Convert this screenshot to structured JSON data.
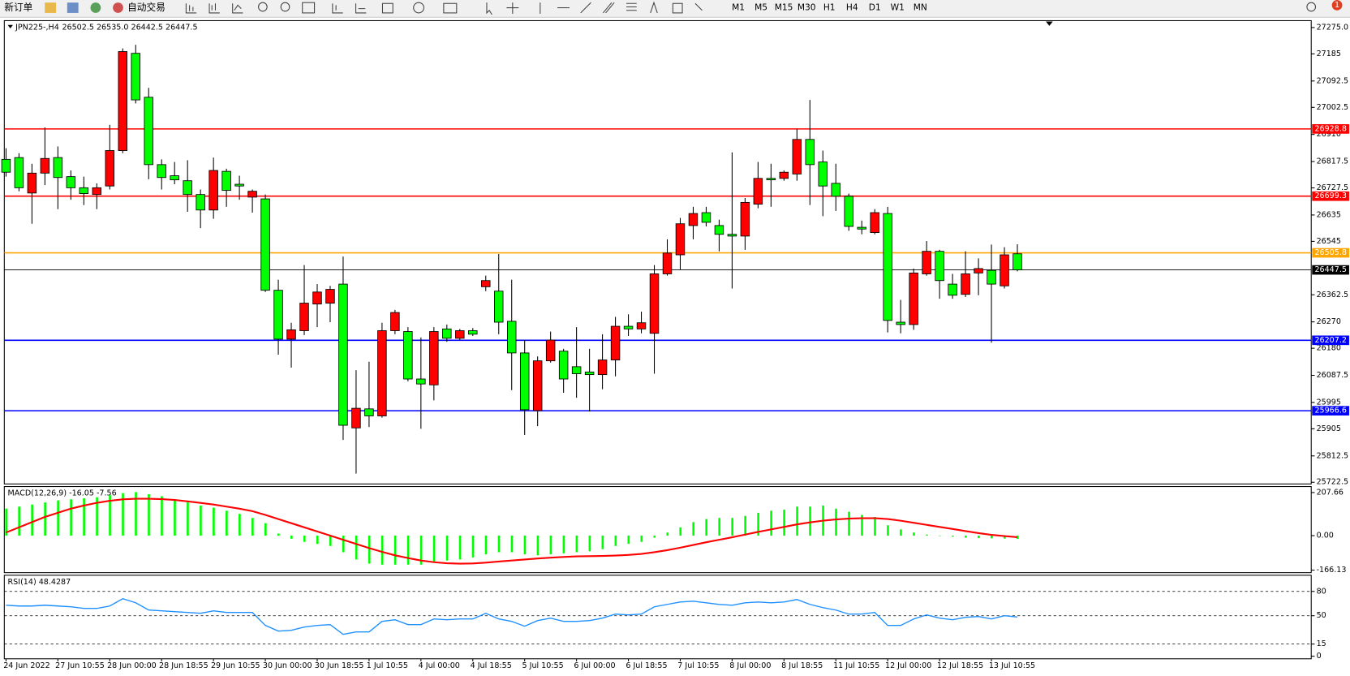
{
  "toolbar": {
    "buttons": [
      "新订单",
      "自动交易"
    ],
    "timeframes": [
      "M1",
      "M5",
      "M15",
      "M30",
      "H1",
      "H4",
      "D1",
      "W1",
      "MN"
    ],
    "badge": "1"
  },
  "chart_data": [
    {
      "type": "candlestick",
      "title": "JPN225-,H4",
      "ohlc_text": "26502.5 26535.0 26442.5 26447.5",
      "categories": [
        "24 Jun 2022",
        null,
        null,
        null,
        "27 Jun 10:55",
        null,
        null,
        null,
        "28 Jun 00:00",
        null,
        null,
        null,
        "28 Jun 18:55",
        null,
        null,
        null,
        "29 Jun 10:55",
        null,
        null,
        null,
        "30 Jun 00:00",
        null,
        null,
        null,
        "30 Jun 18:55",
        null,
        null,
        null,
        "1 Jul 10:55",
        null,
        null,
        null,
        "4 Jul 00:00",
        null,
        null,
        null,
        "4 Jul 18:55",
        null,
        null,
        null,
        "5 Jul 10:55",
        null,
        null,
        null,
        "6 Jul 00:00",
        null,
        null,
        null,
        "6 Jul 18:55",
        null,
        null,
        null,
        "7 Jul 10:55",
        null,
        null,
        null,
        "8 Jul 00:00",
        null,
        null,
        null,
        "8 Jul 18:55",
        null,
        null,
        null,
        "11 Jul 10:55",
        null,
        null,
        null,
        "12 Jul 00:00",
        null,
        null,
        null,
        "12 Jul 18:55",
        null,
        null,
        null,
        "13 Jul 10:55",
        null,
        null
      ],
      "open": [
        26825,
        26831,
        26710,
        26778,
        26831,
        26766,
        26728,
        26705,
        26734,
        26855,
        27187,
        27037,
        26807,
        26769,
        26752,
        26705,
        26652,
        26784,
        26740,
        26696,
        26690,
        26378,
        26211,
        26240,
        26331,
        26334,
        26399,
        25908,
        25973,
        25949,
        26240,
        26237,
        26075,
        26055,
        26246,
        26214,
        26240,
        26390,
        26375,
        26272,
        26164,
        25967,
        26137,
        26170,
        26117,
        26099,
        26090,
        26140,
        26255,
        26246,
        26231,
        26434,
        26499,
        26599,
        26643,
        26599,
        26569,
        26563,
        26672,
        26760,
        26760,
        26775,
        26893,
        26816,
        26743,
        26699,
        26593,
        26575,
        26640,
        26269,
        26261,
        26434,
        26511,
        26399,
        26364,
        26437,
        26446,
        26393,
        26502.5
      ],
      "high": [
        26863,
        26846,
        26810,
        26934,
        26869,
        26787,
        26766,
        26743,
        26943,
        27204,
        27216,
        27069,
        26825,
        26816,
        26822,
        26722,
        26831,
        26793,
        26769,
        26722,
        26705,
        26414,
        26267,
        26464,
        26399,
        26393,
        26493,
        26105,
        26134,
        26267,
        26311,
        26252,
        26217,
        26252,
        26261,
        26246,
        26249,
        26428,
        26502,
        26414,
        26208,
        26152,
        26237,
        26178,
        26252,
        26178,
        26228,
        26287,
        26296,
        26305,
        26464,
        26552,
        26625,
        26663,
        26663,
        26619,
        26849,
        26693,
        26816,
        26810,
        26787,
        26928,
        27028,
        26855,
        26810,
        26708,
        26616,
        26655,
        26663,
        26345,
        26452,
        26546,
        26516,
        26434,
        26511,
        26487,
        26534,
        26525,
        26535
      ],
      "low": [
        26766,
        26716,
        26605,
        26737,
        26655,
        26687,
        26669,
        26655,
        26722,
        26846,
        27016,
        26757,
        26722,
        26740,
        26646,
        26590,
        26622,
        26663,
        26687,
        26643,
        26372,
        26158,
        26114,
        26225,
        26252,
        26269,
        25867,
        25752,
        25911,
        25943,
        26228,
        26067,
        25905,
        26002,
        26202,
        26208,
        26222,
        26375,
        26228,
        26037,
        25884,
        25914,
        26131,
        26028,
        26011,
        25964,
        26040,
        26084,
        26222,
        26231,
        26093,
        26428,
        26449,
        26552,
        26596,
        26511,
        26384,
        26516,
        26658,
        26663,
        26752,
        26752,
        26669,
        26631,
        26649,
        26581,
        26569,
        26569,
        26234,
        26231,
        26243,
        26428,
        26349,
        26349,
        26355,
        26361,
        26199,
        26384,
        26442.5
      ],
      "close": [
        26781,
        26728,
        26778,
        26828,
        26763,
        26728,
        26708,
        26728,
        26855,
        27193,
        27028,
        26807,
        26763,
        26755,
        26705,
        26652,
        26787,
        26719,
        26734,
        26716,
        26378,
        26211,
        26243,
        26334,
        26372,
        26381,
        25917,
        25975,
        25949,
        26240,
        26302,
        26075,
        26058,
        26237,
        26214,
        26240,
        26228,
        26411,
        26269,
        26164,
        25970,
        26137,
        26208,
        26075,
        26093,
        26090,
        26140,
        26255,
        26246,
        26267,
        26434,
        26505,
        26605,
        26640,
        26610,
        26569,
        26563,
        26678,
        26760,
        26755,
        26781,
        26893,
        26807,
        26734,
        26699,
        26596,
        26587,
        26643,
        26275,
        26261,
        26437,
        26511,
        26411,
        26361,
        26434,
        26452,
        26399,
        26499,
        26447.5
      ],
      "up_color": "#ff0000",
      "down_color": "#00ff00",
      "ylim": [
        25716.6,
        27298.5
      ],
      "yticks": [
        {
          "value": 27275,
          "label": "27275.0"
        },
        27185,
        27092.5,
        27002.5,
        26910,
        26817.5,
        26727.5,
        26635,
        26545,
        26362.5,
        26270,
        26180,
        26087.5,
        25995,
        25905,
        25812.5,
        25722.5
      ],
      "levels": [
        {
          "value": 26928.8,
          "color": "#ff0000"
        },
        {
          "value": 26699.3,
          "color": "#ff0000"
        },
        {
          "value": 26505.8,
          "color": "#ffa500"
        },
        {
          "value": 26447.5,
          "color": "#000000"
        },
        {
          "value": 26207.2,
          "color": "#0000ff"
        },
        {
          "value": 25966.6,
          "color": "#0000ff"
        }
      ]
    },
    {
      "type": "macd",
      "title": "MACD(12,26,9) -16.05 -7.56",
      "histogram": [
        130,
        140,
        150,
        160,
        170,
        175,
        180,
        185,
        195,
        205,
        210,
        200,
        190,
        175,
        160,
        145,
        135,
        120,
        105,
        85,
        60,
        10,
        -15,
        -30,
        -40,
        -50,
        -80,
        -115,
        -135,
        -140,
        -140,
        -140,
        -140,
        -130,
        -120,
        -115,
        -105,
        -90,
        -80,
        -80,
        -90,
        -95,
        -90,
        -85,
        -80,
        -75,
        -65,
        -50,
        -40,
        -30,
        -10,
        15,
        40,
        65,
        80,
        85,
        85,
        95,
        110,
        120,
        125,
        140,
        140,
        145,
        130,
        115,
        100,
        90,
        50,
        30,
        15,
        5,
        0,
        -5,
        -10,
        -12,
        -13,
        -14,
        -16.05
      ],
      "signal": [
        15,
        40,
        65,
        90,
        110,
        130,
        145,
        158,
        168,
        175,
        178,
        178,
        176,
        172,
        165,
        158,
        150,
        140,
        130,
        118,
        100,
        80,
        60,
        40,
        20,
        0,
        -20,
        -40,
        -60,
        -78,
        -95,
        -108,
        -120,
        -128,
        -133,
        -135,
        -134,
        -130,
        -125,
        -120,
        -115,
        -110,
        -106,
        -103,
        -100,
        -99,
        -98,
        -96,
        -93,
        -88,
        -80,
        -70,
        -58,
        -45,
        -32,
        -20,
        -8,
        5,
        18,
        30,
        42,
        54,
        64,
        72,
        78,
        82,
        84,
        84,
        80,
        72,
        62,
        52,
        42,
        32,
        22,
        12,
        4,
        -2,
        -7.56
      ],
      "histogram_color": "#00ff00",
      "signal_color": "#ff0000",
      "ylim": [
        -178.5,
        236.6
      ],
      "yticks": [
        207.66,
        {
          "value": 0,
          "label": "0.00"
        },
        -166.13
      ]
    },
    {
      "type": "line",
      "title": "RSI(14) 48.4287",
      "values": [
        63,
        62,
        62,
        63,
        62,
        61,
        59,
        59,
        62,
        71,
        66,
        57,
        56,
        55,
        54,
        53,
        56,
        54,
        54,
        54,
        38,
        31,
        32,
        36,
        38,
        39,
        27,
        30,
        30,
        43,
        45,
        39,
        39,
        46,
        45,
        46,
        46,
        53,
        46,
        43,
        37,
        44,
        47,
        43,
        43,
        44,
        47,
        52,
        51,
        52,
        61,
        64,
        67,
        68,
        66,
        64,
        63,
        66,
        67,
        66,
        67,
        70,
        64,
        60,
        57,
        52,
        52,
        54,
        38,
        38,
        46,
        51,
        47,
        45,
        48,
        49,
        46,
        50,
        48.4287
      ],
      "color": "#1e90ff",
      "ylim": [
        0,
        100
      ],
      "yticks": [
        80,
        50,
        15,
        0
      ],
      "levels": [
        80,
        50,
        15
      ]
    }
  ]
}
